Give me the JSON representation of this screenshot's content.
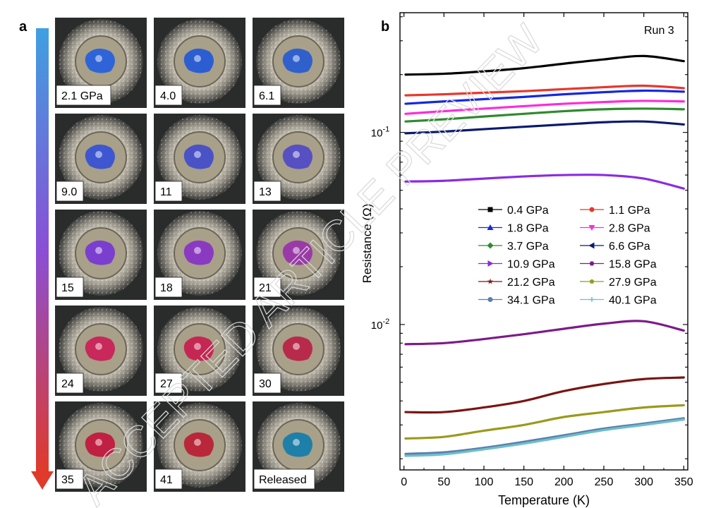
{
  "panel_a": {
    "label": "a",
    "tiles": [
      {
        "label": "2.1 GPa",
        "sample_color": "#2f64d8"
      },
      {
        "label": "4.0",
        "sample_color": "#2c5ed2"
      },
      {
        "label": "6.1",
        "sample_color": "#3060cc"
      },
      {
        "label": "9.0",
        "sample_color": "#3e57d0"
      },
      {
        "label": "11",
        "sample_color": "#4a52c6"
      },
      {
        "label": "13",
        "sample_color": "#5650c2"
      },
      {
        "label": "15",
        "sample_color": "#7a3fcf"
      },
      {
        "label": "18",
        "sample_color": "#8a3ac0"
      },
      {
        "label": "21",
        "sample_color": "#9a3aa8"
      },
      {
        "label": "24",
        "sample_color": "#c8285a"
      },
      {
        "label": "27",
        "sample_color": "#c52752"
      },
      {
        "label": "30",
        "sample_color": "#b82a4a"
      },
      {
        "label": "35",
        "sample_color": "#c02042"
      },
      {
        "label": "41",
        "sample_color": "#b8283a"
      },
      {
        "label": "Released",
        "sample_color": "#1e7fa8"
      }
    ],
    "arrow_colors": {
      "top": "#3fa0e0",
      "middle": "#8a4fd6",
      "bottom": "#e03a2a"
    }
  },
  "watermark": {
    "text": "ACCEPTED ARTICLE PREVIEW",
    "color": "#d9d9d9"
  },
  "chart_data": {
    "type": "line",
    "panel_label": "b",
    "annotation": "Run 3",
    "xlabel": "Temperature (K)",
    "ylabel": "Resistance (Ω)",
    "xlim": [
      -5,
      355
    ],
    "ylim": [
      0.00175,
      0.42
    ],
    "yscale": "log",
    "xticks": [
      0,
      50,
      100,
      150,
      200,
      250,
      300,
      350
    ],
    "xtick_labels": [
      "0",
      "50",
      "100",
      "150",
      "200",
      "250",
      "300",
      "350"
    ],
    "ytick_labels": [
      {
        "value": 0.1,
        "base": "10",
        "exp": "-1"
      },
      {
        "value": 0.01,
        "base": "10",
        "exp": "-2"
      }
    ],
    "legend_position": "center-right",
    "x": [
      2,
      50,
      100,
      150,
      200,
      250,
      300,
      350
    ],
    "series": [
      {
        "name": "0.4 GPa",
        "color": "#000000",
        "marker": "square",
        "values": [
          0.2,
          0.202,
          0.208,
          0.216,
          0.228,
          0.24,
          0.25,
          0.235
        ]
      },
      {
        "name": "1.1 GPa",
        "color": "#e8372c",
        "marker": "circle",
        "values": [
          0.156,
          0.158,
          0.161,
          0.164,
          0.168,
          0.172,
          0.175,
          0.17
        ]
      },
      {
        "name": "1.8 GPa",
        "color": "#1428e0",
        "marker": "triangle-up",
        "values": [
          0.141,
          0.145,
          0.149,
          0.153,
          0.158,
          0.162,
          0.165,
          0.163
        ]
      },
      {
        "name": "2.8 GPa",
        "color": "#ff2bd8",
        "marker": "triangle-down",
        "values": [
          0.125,
          0.129,
          0.133,
          0.137,
          0.141,
          0.144,
          0.146,
          0.145
        ]
      },
      {
        "name": "3.7 GPa",
        "color": "#2e8b2e",
        "marker": "diamond",
        "values": [
          0.114,
          0.117,
          0.121,
          0.125,
          0.129,
          0.132,
          0.133,
          0.132
        ]
      },
      {
        "name": "6.6 GPa",
        "color": "#0a1a6e",
        "marker": "triangle-left",
        "values": [
          0.099,
          0.101,
          0.104,
          0.107,
          0.11,
          0.113,
          0.114,
          0.11
        ]
      },
      {
        "name": "10.9 GPa",
        "color": "#8a2be2",
        "marker": "triangle-right",
        "values": [
          0.0555,
          0.056,
          0.0575,
          0.059,
          0.06,
          0.06,
          0.0575,
          0.051
        ]
      },
      {
        "name": "15.8 GPa",
        "color": "#7e1a8a",
        "marker": "hexagon",
        "values": [
          0.0079,
          0.008,
          0.0084,
          0.0089,
          0.0095,
          0.0101,
          0.0104,
          0.0093
        ]
      },
      {
        "name": "21.2 GPa",
        "color": "#7a1414",
        "marker": "star",
        "values": [
          0.0035,
          0.0035,
          0.0037,
          0.004,
          0.0045,
          0.0049,
          0.0052,
          0.0053
        ]
      },
      {
        "name": "27.9 GPa",
        "color": "#9a9a1c",
        "marker": "pentagon",
        "values": [
          0.00255,
          0.0026,
          0.0028,
          0.003,
          0.0033,
          0.0035,
          0.0037,
          0.0038
        ]
      },
      {
        "name": "34.1 GPa",
        "color": "#5a7fb0",
        "marker": "circle",
        "values": [
          0.00212,
          0.00216,
          0.00228,
          0.00245,
          0.00265,
          0.00287,
          0.00305,
          0.00325
        ]
      },
      {
        "name": "40.1 GPa",
        "color": "#6fbfc7",
        "marker": "plus",
        "values": [
          0.00207,
          0.00211,
          0.00224,
          0.0024,
          0.0026,
          0.00282,
          0.003,
          0.0032
        ]
      }
    ]
  }
}
